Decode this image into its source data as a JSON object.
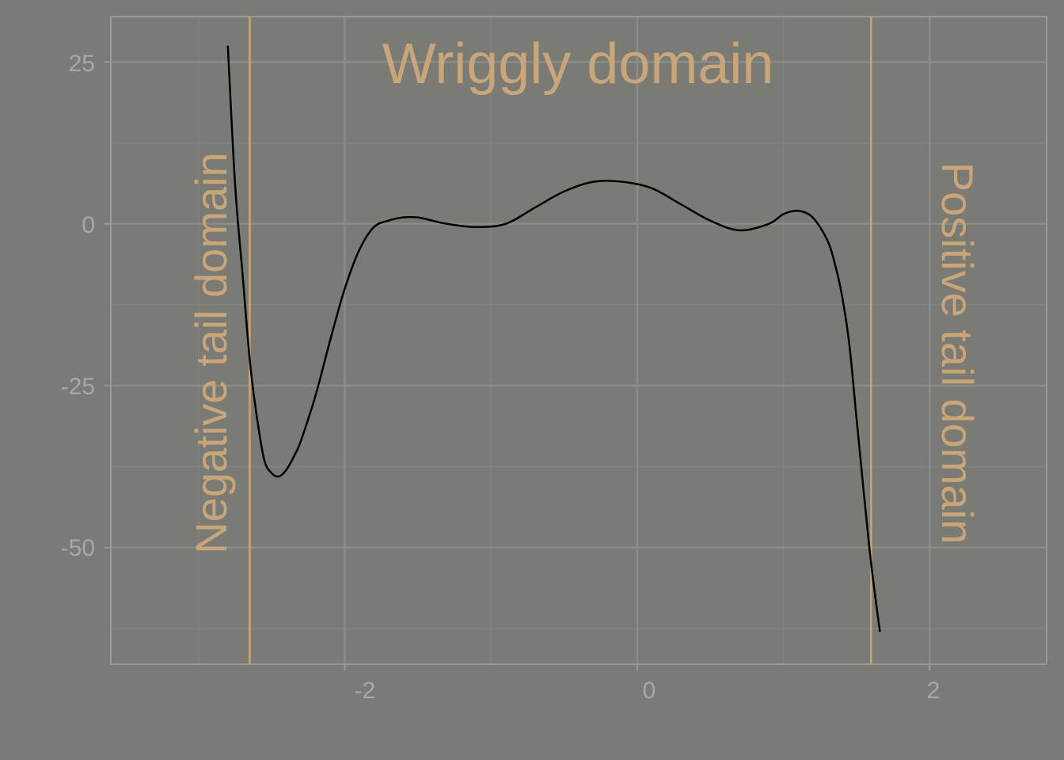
{
  "colors": {
    "background": "#7b7b76",
    "panel_border": "#9a9a95",
    "grid_major": "#8c8c87",
    "grid_minor": "#838380",
    "tick_label": "#a9a9a4",
    "accent": "#c9a57a",
    "curve": "#000000"
  },
  "chart_data": {
    "type": "line",
    "title": "",
    "xlabel": "",
    "ylabel": "",
    "xlim": [
      -3.6,
      2.8
    ],
    "ylim": [
      -68,
      32
    ],
    "x_ticks": [
      -2,
      0,
      2
    ],
    "y_ticks": [
      25,
      0,
      -25,
      -50
    ],
    "x_tick_labels": [
      "-2",
      "0",
      "2"
    ],
    "y_tick_labels": [
      "25",
      "0",
      "-25",
      "-50"
    ],
    "grid": true,
    "series": [
      {
        "x": [
          -2.8,
          -2.75,
          -2.7,
          -2.65,
          -2.6,
          -2.55,
          -2.5,
          -2.45,
          -2.4,
          -2.35,
          -2.3,
          -2.2,
          -2.1,
          -2.0,
          -1.9,
          -1.8,
          -1.7,
          -1.6,
          -1.5,
          -1.4,
          -1.3,
          -1.1,
          -0.9,
          -0.7,
          -0.5,
          -0.3,
          -0.1,
          0.1,
          0.3,
          0.5,
          0.7,
          0.9,
          1.0,
          1.1,
          1.2,
          1.3,
          1.35,
          1.4,
          1.45,
          1.5,
          1.55,
          1.6,
          1.66
        ],
        "y": [
          27.5,
          6,
          -7.5,
          -21,
          -30,
          -36.5,
          -38.5,
          -39,
          -38,
          -36,
          -33.5,
          -26.5,
          -18,
          -10,
          -4,
          -0.5,
          0.5,
          1,
          1,
          0.5,
          0,
          -0.5,
          0,
          2.5,
          5,
          6.5,
          6.5,
          5.5,
          3,
          0.5,
          -1,
          0,
          1.5,
          2,
          1,
          -2.5,
          -6,
          -11,
          -18.5,
          -30,
          -41.5,
          -52.5,
          -63
        ]
      }
    ],
    "vlines": [
      -2.65,
      1.6
    ],
    "annotations": {
      "top": "Wriggly domain",
      "left": "Negative tail domain",
      "right": "Positive tail domain"
    }
  }
}
